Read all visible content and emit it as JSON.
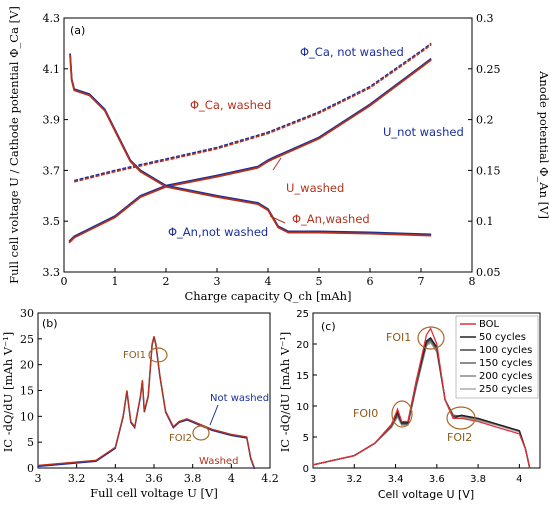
{
  "chart_data": [
    {
      "panel": "(a)",
      "type": "line",
      "xlabel": "Charge capacity Q_ch [mAh]",
      "ylabel_left": "Full cell voltage U / Cathode potential Φ_Ca [V]",
      "ylabel_right": "Anode potential Φ_An [V]",
      "xlim": [
        0,
        8
      ],
      "ylim_left": [
        3.3,
        4.3
      ],
      "ylim_right": [
        0.05,
        0.3
      ],
      "xticks": [
        "0",
        "1",
        "2",
        "3",
        "4",
        "5",
        "6",
        "7",
        "8"
      ],
      "yticks_left": [
        "3.3",
        "3.5",
        "3.7",
        "3.9",
        "4.1",
        "4.3"
      ],
      "yticks_right": [
        "0.05",
        "0.1",
        "0.15",
        "0.2",
        "0.25",
        "0.3"
      ],
      "annotations": {
        "ca_not_washed": "Φ_Ca, not washed",
        "ca_washed": "Φ_Ca, washed",
        "u_not_washed": "U_not washed",
        "u_washed": "U_washed",
        "an_washed": "Φ_An,washed",
        "an_not_washed": "Φ_An,not washed"
      },
      "series": [
        {
          "name": "Φ_Ca",
          "axis": "left",
          "color": "#b5321c",
          "x": [
            0.2,
            1,
            2,
            3,
            4,
            5,
            6,
            7,
            7.2
          ],
          "y": [
            3.66,
            3.7,
            3.745,
            3.79,
            3.85,
            3.93,
            4.03,
            4.17,
            4.2
          ]
        },
        {
          "name": "U",
          "axis": "left",
          "color": "#7a2f8c",
          "x": [
            0.1,
            0.2,
            0.5,
            1.0,
            1.5,
            2.0,
            3.0,
            3.8,
            4.0,
            4.1,
            5.0,
            6.0,
            7.0,
            7.2
          ],
          "y": [
            3.42,
            3.44,
            3.47,
            3.52,
            3.6,
            3.64,
            3.68,
            3.715,
            3.74,
            3.75,
            3.83,
            3.96,
            4.11,
            4.14
          ]
        },
        {
          "name": "Φ_An",
          "axis": "right",
          "color": "#7a2f8c",
          "x": [
            0.12,
            0.15,
            0.2,
            0.5,
            0.8,
            1.0,
            1.3,
            1.5,
            2.0,
            3.0,
            3.8,
            4.0,
            4.2,
            4.4,
            5.0,
            6.0,
            7.2
          ],
          "y": [
            0.265,
            0.24,
            0.23,
            0.225,
            0.21,
            0.19,
            0.16,
            0.15,
            0.135,
            0.125,
            0.118,
            0.112,
            0.095,
            0.09,
            0.09,
            0.089,
            0.087
          ]
        }
      ]
    },
    {
      "panel": "(b)",
      "type": "line",
      "xlabel": "Full cell voltage U [V]",
      "ylabel": "IC -dQ/dU [mAh V⁻¹]",
      "xlim": [
        3,
        4.2
      ],
      "ylim": [
        0,
        30
      ],
      "xticks": [
        "3",
        "3.2",
        "3.4",
        "3.6",
        "3.8",
        "4",
        "4.2"
      ],
      "yticks": [
        "0",
        "5",
        "10",
        "15",
        "20",
        "25",
        "30"
      ],
      "annotations": {
        "foi1": "FOI1",
        "foi2": "FOI2",
        "not_washed": "Not washed",
        "washed": "Washed"
      },
      "series": [
        {
          "name": "U",
          "color": "#b5321c",
          "x": [
            3.0,
            3.3,
            3.4,
            3.44,
            3.46,
            3.48,
            3.5,
            3.53,
            3.54,
            3.55,
            3.57,
            3.59,
            3.6,
            3.61,
            3.63,
            3.66,
            3.7,
            3.73,
            3.77,
            3.9,
            4.0,
            4.08,
            4.1,
            4.12
          ],
          "y": [
            0.5,
            1.5,
            4,
            10,
            15,
            9,
            8,
            14,
            17,
            11,
            14,
            24,
            25.5,
            24,
            18,
            11,
            8,
            9,
            9.5,
            7.5,
            6.5,
            6,
            2,
            0
          ]
        }
      ]
    },
    {
      "panel": "(c)",
      "type": "line",
      "xlabel": "Cell voltage U [V]",
      "ylabel": "IC -dQ/dU [mAh V⁻¹]",
      "xlim": [
        3,
        4.1
      ],
      "ylim": [
        0,
        25
      ],
      "xticks": [
        "3",
        "3.2",
        "3.4",
        "3.6",
        "3.8",
        "4"
      ],
      "yticks": [
        "0",
        "5",
        "10",
        "15",
        "20",
        "25"
      ],
      "annotations": {
        "foi0": "FOI0",
        "foi1": "FOI1",
        "foi2": "FOI2"
      },
      "x": [
        3.0,
        3.2,
        3.3,
        3.38,
        3.41,
        3.43,
        3.46,
        3.5,
        3.55,
        3.57,
        3.6,
        3.64,
        3.68,
        3.72,
        3.8,
        3.9,
        4.0,
        4.03,
        4.05
      ],
      "series": [
        {
          "name": "BOL",
          "color": "#e0303a",
          "values": [
            0.5,
            2,
            4,
            7,
            9.5,
            7.5,
            7.5,
            14,
            21.5,
            22.5,
            20,
            11,
            8,
            8,
            7.5,
            6.5,
            5.5,
            3,
            0
          ]
        },
        {
          "name": "50 cycles",
          "color": "#222222",
          "values": [
            0.5,
            2,
            4,
            7,
            9,
            7.3,
            7.3,
            14,
            20.5,
            21,
            19.5,
            11,
            8,
            8.5,
            8,
            7,
            6,
            3,
            0
          ]
        },
        {
          "name": "100 cycles",
          "color": "#444444",
          "values": [
            0.5,
            2,
            4,
            6.8,
            8.8,
            7.2,
            7.2,
            13.5,
            20.3,
            20.8,
            19.3,
            11,
            8.3,
            8.5,
            8,
            7,
            6,
            3,
            0
          ]
        },
        {
          "name": "150 cycles",
          "color": "#666666",
          "values": [
            0.5,
            2,
            4,
            6.7,
            8.6,
            7.1,
            7.1,
            13.3,
            20.1,
            20.6,
            19.1,
            11,
            8.4,
            8.4,
            7.9,
            7,
            6,
            3,
            0
          ]
        },
        {
          "name": "200 cycles",
          "color": "#888888",
          "values": [
            0.5,
            2,
            4,
            6.6,
            8.4,
            7.0,
            7.0,
            13.1,
            19.9,
            20.4,
            18.9,
            11,
            8.5,
            8.3,
            7.8,
            6.9,
            5.9,
            3,
            0
          ]
        },
        {
          "name": "250 cycles",
          "color": "#aaaaaa",
          "values": [
            0.5,
            2,
            4,
            6.5,
            8.2,
            6.9,
            6.9,
            12.9,
            19.7,
            20.2,
            18.7,
            11,
            8.6,
            8.2,
            7.7,
            6.8,
            5.8,
            3,
            0
          ]
        }
      ]
    }
  ]
}
